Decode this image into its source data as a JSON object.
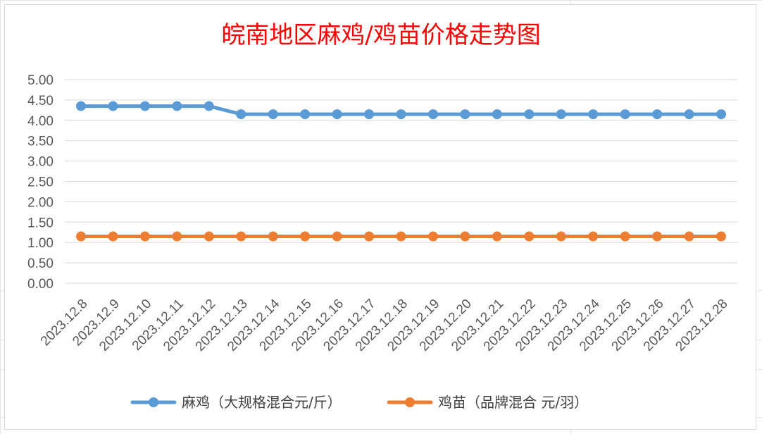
{
  "chart_data": {
    "type": "line",
    "title": "皖南地区麻鸡/鸡苗价格走势图",
    "title_color": "#ff0000",
    "categories": [
      "2023.12.8",
      "2023.12.9",
      "2023.12.10",
      "2023.12.11",
      "2023.12.12",
      "2023.12.13",
      "2023.12.14",
      "2023.12.15",
      "2023.12.16",
      "2023.12.17",
      "2023.12.18",
      "2023.12.19",
      "2023.12.20",
      "2023.12.21",
      "2023.12.22",
      "2023.12.23",
      "2023.12.24",
      "2023.12.25",
      "2023.12.26",
      "2023.12.27",
      "2023.12.28"
    ],
    "series": [
      {
        "name": "麻鸡（大规格混合元/斤）",
        "color": "#5b9bd5",
        "values": [
          4.35,
          4.35,
          4.35,
          4.35,
          4.35,
          4.15,
          4.15,
          4.15,
          4.15,
          4.15,
          4.15,
          4.15,
          4.15,
          4.15,
          4.15,
          4.15,
          4.15,
          4.15,
          4.15,
          4.15,
          4.15
        ]
      },
      {
        "name": "鸡苗（品牌混合 元/羽）",
        "color": "#ed7d31",
        "values": [
          1.15,
          1.15,
          1.15,
          1.15,
          1.15,
          1.15,
          1.15,
          1.15,
          1.15,
          1.15,
          1.15,
          1.15,
          1.15,
          1.15,
          1.15,
          1.15,
          1.15,
          1.15,
          1.15,
          1.15,
          1.15
        ]
      }
    ],
    "ylim": [
      0,
      5
    ],
    "yticks": [
      "0.00",
      "0.50",
      "1.00",
      "1.50",
      "2.00",
      "2.50",
      "3.00",
      "3.50",
      "4.00",
      "4.50",
      "5.00"
    ],
    "xlabel": "",
    "ylabel": "",
    "grid": true,
    "legend_position": "bottom"
  }
}
